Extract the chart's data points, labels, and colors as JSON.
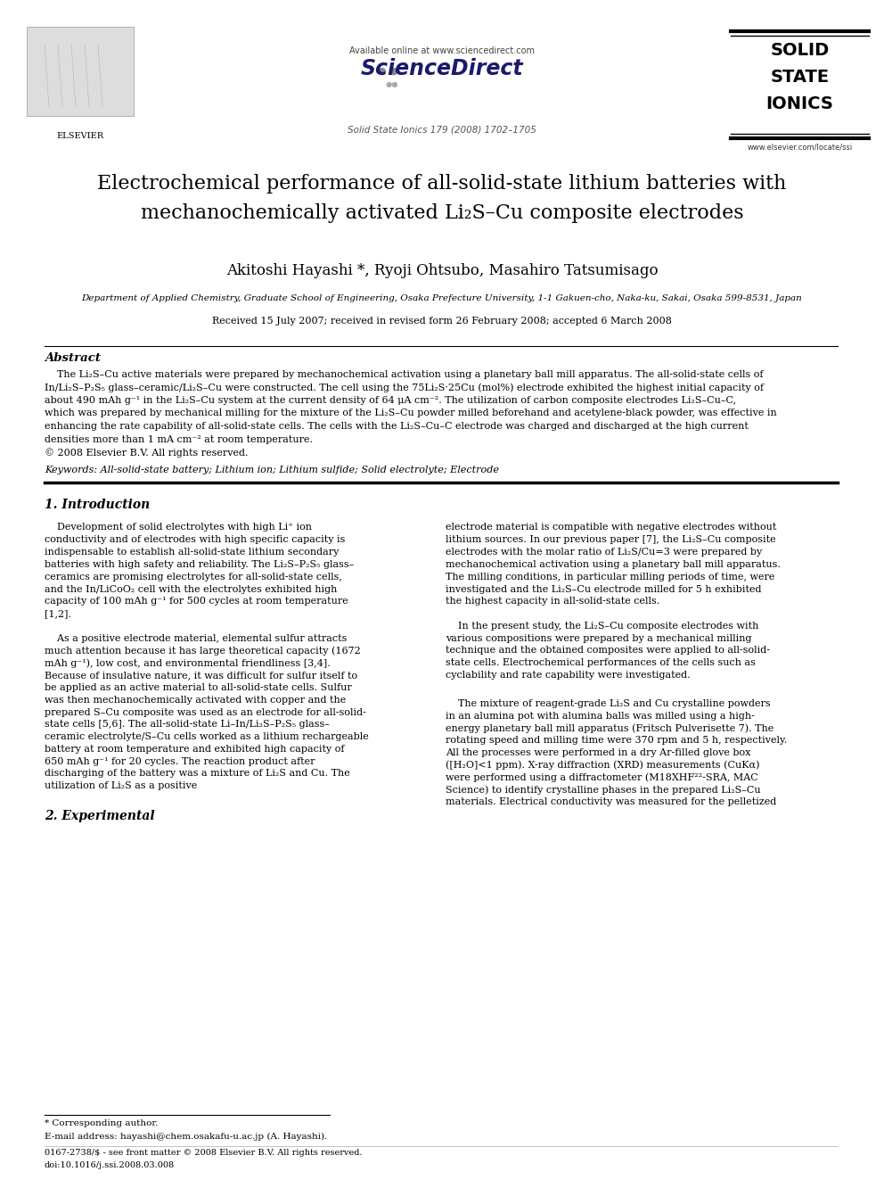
{
  "background_color": "#ffffff",
  "page_width": 9.92,
  "page_height": 13.23,
  "dpi": 100,
  "header": {
    "available_online": "Available online at www.sciencedirect.com",
    "sciencedirect": "ScienceDirect",
    "journal_info": "Solid State Ionics 179 (2008) 1702–1705",
    "journal_name_line1": "SOLID",
    "journal_name_line2": "STATE",
    "journal_name_line3": "IONICS",
    "journal_url": "www.elsevier.com/locate/ssi",
    "elsevier": "ELSEVIER"
  },
  "title_line1": "Electrochemical performance of all-solid-state lithium batteries with",
  "title_line2": "mechanochemically activated Li₂S–Cu composite electrodes",
  "authors": "Akitoshi Hayashi *, Ryoji Ohtsubo, Masahiro Tatsumisago",
  "affiliation": "Department of Applied Chemistry, Graduate School of Engineering, Osaka Prefecture University, 1-1 Gakuen-cho, Naka-ku, Sakai, Osaka 599-8531, Japan",
  "received": "Received 15 July 2007; received in revised form 26 February 2008; accepted 6 March 2008",
  "abstract_title": "Abstract",
  "keywords_line": "Keywords: All-solid-state battery; Lithium ion; Lithium sulfide; Solid electrolyte; Electrode",
  "section1_title": "1. Introduction",
  "section2_title": "2. Experimental",
  "footer_corresponding": "* Corresponding author.",
  "footer_email": "E-mail address: hayashi@chem.osakafu-u.ac.jp (A. Hayashi).",
  "footer_copyright": "0167-2738/$ - see front matter © 2008 Elsevier B.V. All rights reserved.",
  "footer_doi": "doi:10.1016/j.ssi.2008.03.008"
}
